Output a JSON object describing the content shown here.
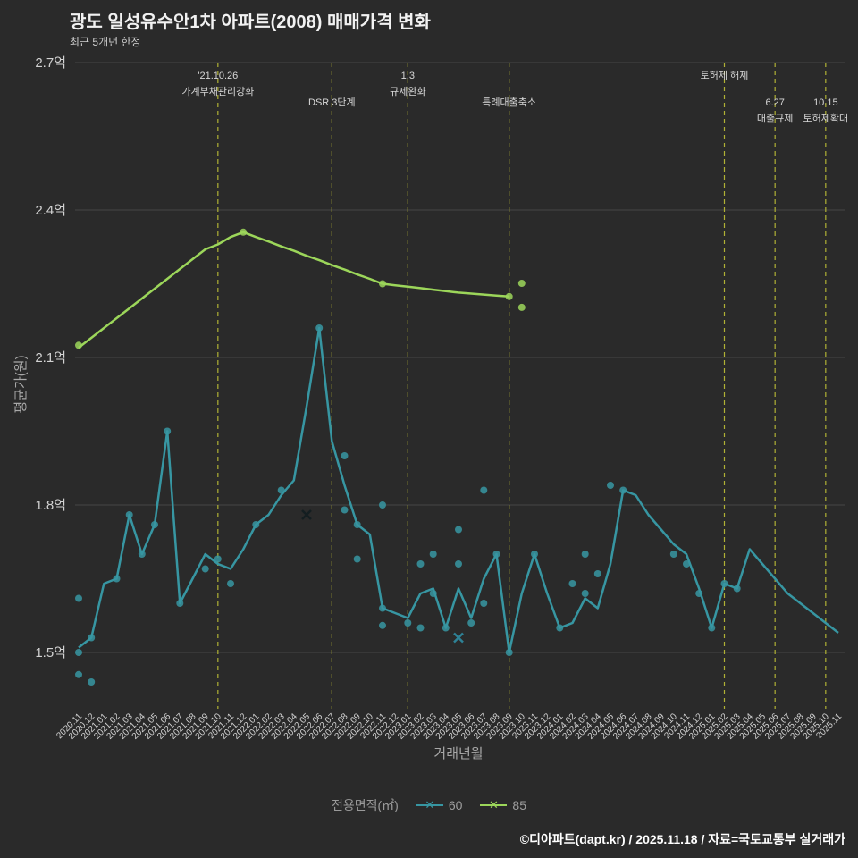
{
  "header": {
    "title": "광도 일성유수안1차 아파트(2008) 매매가격 변화",
    "subtitle": "최근 5개년 한정"
  },
  "legend": {
    "title": "전용면적(㎡)",
    "items": [
      {
        "label": "60",
        "color": "#3796a2"
      },
      {
        "label": "85",
        "color": "#9cd65a"
      }
    ]
  },
  "footer": {
    "text": "©디아파트(dapt.kr) / 2025.11.18 / 자료=국토교통부 실거래가"
  },
  "chart_data": {
    "type": "line",
    "title": "광도 일성유수안1차 아파트(2008) 매매가격 변화",
    "xlabel": "거래년월",
    "ylabel": "평균가(원)",
    "ylim": [
      1.5,
      2.7
    ],
    "yticks": [
      {
        "label": "1.5억",
        "value": 1.5
      },
      {
        "label": "1.8억",
        "value": 1.8
      },
      {
        "label": "2.1억",
        "value": 2.1
      },
      {
        "label": "2.4억",
        "value": 2.4
      },
      {
        "label": "2.7억",
        "value": 2.7
      }
    ],
    "colors": {
      "background": "#2a2a2a",
      "grid": "#454545",
      "tick_text": "#d2d2d2",
      "axis_text": "#a8a8a8",
      "annotation": "#b0b135",
      "annotation_text": "#d8d8d8"
    },
    "categories": [
      "2020.11",
      "2020.12",
      "2021.01",
      "2021.02",
      "2021.03",
      "2021.04",
      "2021.05",
      "2021.06",
      "2021.07",
      "2021.08",
      "2021.09",
      "2021.10",
      "2021.11",
      "2021.12",
      "2022.01",
      "2022.02",
      "2022.03",
      "2022.04",
      "2022.05",
      "2022.06",
      "2022.07",
      "2022.08",
      "2022.09",
      "2022.10",
      "2022.11",
      "2022.12",
      "2023.01",
      "2023.02",
      "2023.03",
      "2023.04",
      "2023.05",
      "2023.06",
      "2023.07",
      "2023.08",
      "2023.09",
      "2023.10",
      "2023.11",
      "2023.12",
      "2024.01",
      "2024.02",
      "2024.03",
      "2024.04",
      "2024.05",
      "2024.06",
      "2024.07",
      "2024.08",
      "2024.09",
      "2024.10",
      "2024.11",
      "2024.12",
      "2025.01",
      "2025.02",
      "2025.03",
      "2025.04",
      "2025.05",
      "2025.06",
      "2025.07",
      "2025.08",
      "2025.09",
      "2025.10",
      "2025.11"
    ],
    "series": [
      {
        "name": "60",
        "color": "#3796a2",
        "line": [
          1.51,
          1.53,
          1.64,
          1.65,
          1.78,
          1.7,
          1.76,
          1.95,
          1.6,
          1.65,
          1.7,
          1.68,
          1.67,
          1.71,
          1.76,
          1.78,
          1.82,
          1.85,
          2.0,
          2.16,
          1.93,
          1.84,
          1.76,
          1.74,
          1.59,
          1.58,
          1.57,
          1.62,
          1.63,
          1.55,
          1.63,
          1.57,
          1.65,
          1.7,
          1.5,
          1.62,
          1.7,
          1.62,
          1.55,
          1.56,
          1.61,
          1.59,
          1.68,
          1.83,
          1.82,
          1.78,
          1.75,
          1.72,
          1.7,
          1.63,
          1.55,
          1.64,
          1.63,
          1.71,
          1.68,
          1.65,
          1.62,
          1.6,
          1.58,
          1.56,
          1.54
        ],
        "scatter": [
          [
            0,
            1.5
          ],
          [
            0,
            1.455
          ],
          [
            0,
            1.61
          ],
          [
            1,
            1.53
          ],
          [
            1,
            1.44
          ],
          [
            3,
            1.65
          ],
          [
            4,
            1.78
          ],
          [
            5,
            1.7
          ],
          [
            6,
            1.76
          ],
          [
            7,
            1.95
          ],
          [
            8,
            1.6
          ],
          [
            10,
            1.67
          ],
          [
            11,
            1.69
          ],
          [
            12,
            1.64
          ],
          [
            14,
            1.76
          ],
          [
            16,
            1.83
          ],
          [
            19,
            2.16
          ],
          [
            21,
            1.9
          ],
          [
            21,
            1.79
          ],
          [
            22,
            1.69
          ],
          [
            22,
            1.76
          ],
          [
            24,
            1.8
          ],
          [
            24,
            1.555
          ],
          [
            24,
            1.59
          ],
          [
            26,
            1.56
          ],
          [
            27,
            1.68
          ],
          [
            27,
            1.55
          ],
          [
            28,
            1.7
          ],
          [
            28,
            1.62
          ],
          [
            29,
            1.55
          ],
          [
            30,
            1.75
          ],
          [
            30,
            1.68
          ],
          [
            31,
            1.56
          ],
          [
            32,
            1.83
          ],
          [
            32,
            1.6
          ],
          [
            33,
            1.7
          ],
          [
            34,
            1.5
          ],
          [
            36,
            1.7
          ],
          [
            38,
            1.55
          ],
          [
            39,
            1.64
          ],
          [
            40,
            1.7
          ],
          [
            40,
            1.62
          ],
          [
            41,
            1.66
          ],
          [
            42,
            1.84
          ],
          [
            43,
            1.83
          ],
          [
            47,
            1.7
          ],
          [
            48,
            1.68
          ],
          [
            49,
            1.62
          ],
          [
            50,
            1.55
          ],
          [
            51,
            1.64
          ],
          [
            52,
            1.63
          ]
        ],
        "x_markers": [
          {
            "index": 18,
            "value": 1.78,
            "color": "#141e21"
          },
          {
            "index": 30,
            "value": 1.53,
            "color": "#2e8296"
          }
        ]
      },
      {
        "name": "85",
        "color": "#9cd65a",
        "line": [
          2.12,
          2.14,
          2.16,
          2.18,
          2.2,
          2.22,
          2.24,
          2.26,
          2.28,
          2.3,
          2.32,
          2.33,
          2.345,
          2.355,
          2.345,
          2.336,
          2.326,
          2.317,
          2.307,
          2.298,
          2.288,
          2.279,
          2.269,
          2.26,
          2.25,
          2.247,
          2.244,
          2.241,
          2.238,
          2.235,
          2.232,
          2.23,
          2.228,
          2.226,
          2.224,
          null,
          null,
          null,
          null,
          null,
          null,
          null,
          null,
          null,
          null,
          null,
          null,
          null,
          null,
          null,
          null,
          null,
          null,
          null,
          null,
          null,
          null,
          null,
          null,
          null,
          null
        ],
        "scatter": [
          [
            0,
            2.125
          ],
          [
            13,
            2.355
          ],
          [
            24,
            2.25
          ],
          [
            34,
            2.224
          ],
          [
            35,
            2.251
          ],
          [
            35,
            2.202
          ]
        ],
        "x_markers": []
      }
    ],
    "annotations": [
      {
        "category": "2021.10",
        "text_lines": [
          "'21.10.26",
          "가계부채관리강화"
        ],
        "row": 0
      },
      {
        "category": "2022.07",
        "text_lines": [
          "DSR 3단계"
        ],
        "row": 1
      },
      {
        "category": "2023.01",
        "text_lines": [
          "1.3",
          "규제완화"
        ],
        "row": 0
      },
      {
        "category": "2023.09",
        "text_lines": [
          "특례대출축소"
        ],
        "row": 1
      },
      {
        "category": "2025.02",
        "text_lines": [
          "토허제 해제"
        ],
        "row": 0
      },
      {
        "category": "2025.06",
        "text_lines": [
          "6.27",
          "대출규제"
        ],
        "row": 1
      },
      {
        "category": "2025.10",
        "text_lines": [
          "10.15",
          "토허제확대"
        ],
        "row": 1
      }
    ],
    "legend_position": "bottom"
  }
}
